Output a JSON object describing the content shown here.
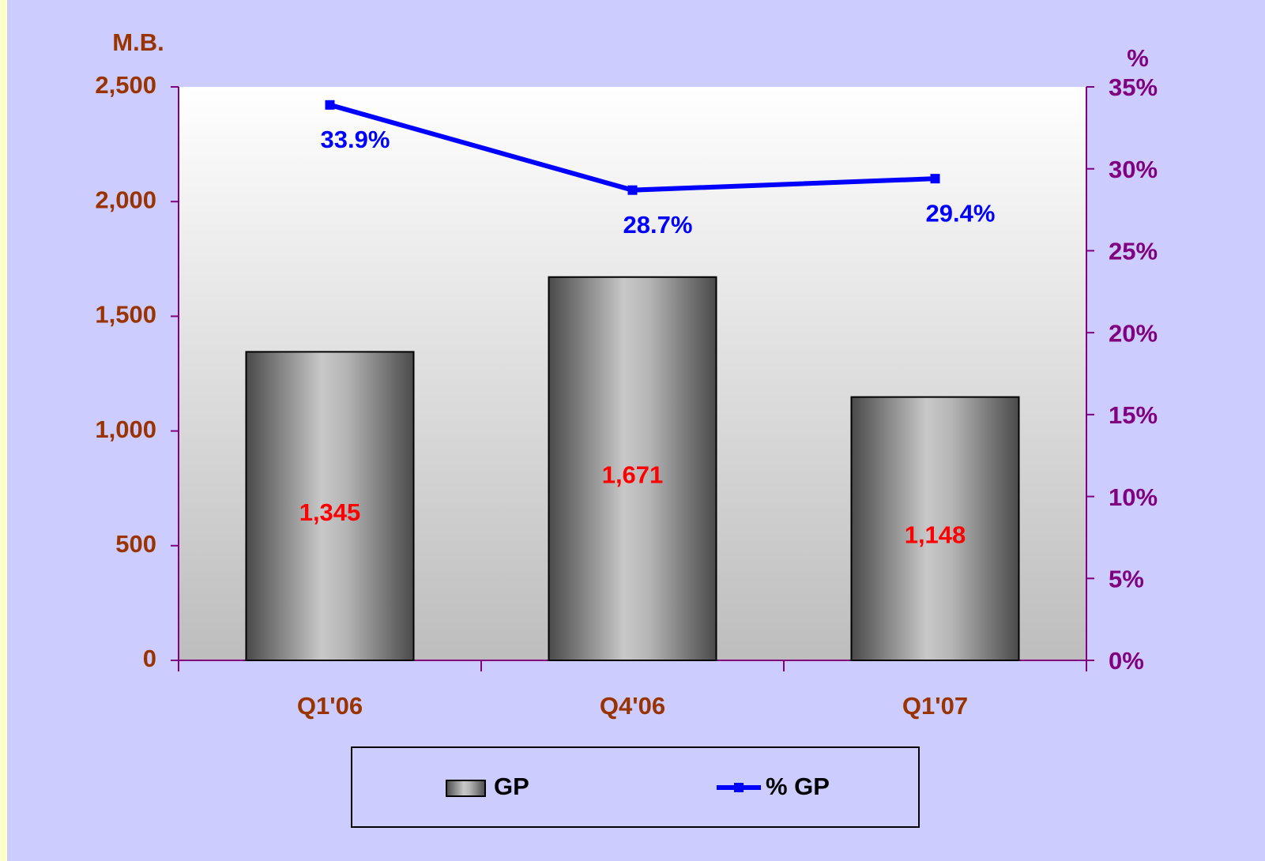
{
  "chart_data": {
    "type": "bar",
    "y_label": "M.B.",
    "y2_label": "%",
    "categories": [
      "Q1'06",
      "Q4'06",
      "Q1'07"
    ],
    "series": [
      {
        "name": "GP",
        "type": "bar",
        "color": "#b0b0b0",
        "values": [
          1345,
          1671,
          1148
        ],
        "value_labels": [
          "1,345",
          "1,671",
          "1,148"
        ],
        "label_color": "#ff0000"
      },
      {
        "name": "% GP",
        "type": "line",
        "axis": "y2",
        "color": "#0000ff",
        "values": [
          33.9,
          28.7,
          29.4
        ],
        "value_labels": [
          "33.9%",
          "28.7%",
          "29.4%"
        ],
        "label_color": "#0000ff"
      }
    ],
    "ylim": [
      0,
      2500
    ],
    "yticks": [
      0,
      500,
      {
        "value": 1000,
        "label": "1,000"
      },
      {
        "value": 1500,
        "label": "1,500"
      },
      {
        "value": 2000,
        "label": "2,000"
      },
      {
        "value": 2500,
        "label": "2,500"
      }
    ],
    "y2lim": [
      0,
      35
    ],
    "y2ticks": [
      {
        "value": 0,
        "label": "0%"
      },
      {
        "value": 5,
        "label": "5%"
      },
      {
        "value": 10,
        "label": "10%"
      },
      {
        "value": 15,
        "label": "15%"
      },
      {
        "value": 20,
        "label": "20%"
      },
      {
        "value": 25,
        "label": "25%"
      },
      {
        "value": 30,
        "label": "30%"
      },
      {
        "value": 35,
        "label": "35%"
      }
    ],
    "y_tick_color": "#993300",
    "y2_tick_color": "#800080",
    "x_tick_color": "#993300",
    "axis_color": "#800080"
  }
}
